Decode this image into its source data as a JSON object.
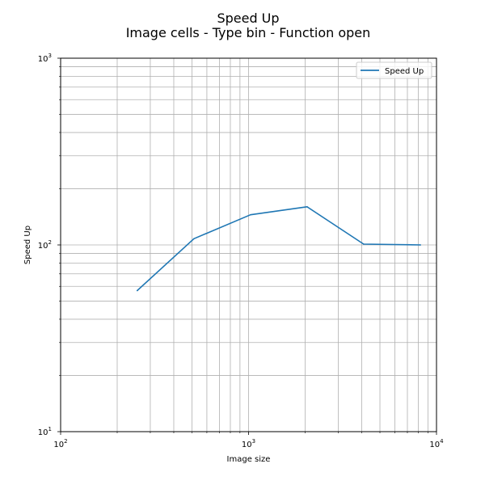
{
  "chart_data": {
    "type": "line",
    "title": "Speed Up",
    "subtitle": "Image cells - Type bin - Function open",
    "xlabel": "Image size",
    "ylabel": "Speed Up",
    "xscale": "log",
    "yscale": "log",
    "xlim": [
      100,
      10000
    ],
    "ylim": [
      10,
      1000
    ],
    "grid": "major and minor",
    "legend_position": "top-right",
    "x_ticks": [
      {
        "value": 100,
        "base": "10",
        "exp": "2"
      },
      {
        "value": 1000,
        "base": "10",
        "exp": "3"
      },
      {
        "value": 10000,
        "base": "10",
        "exp": "4"
      }
    ],
    "y_ticks": [
      {
        "value": 10,
        "base": "10",
        "exp": "1"
      },
      {
        "value": 100,
        "base": "10",
        "exp": "2"
      },
      {
        "value": 1000,
        "base": "10",
        "exp": "3"
      }
    ],
    "series": [
      {
        "name": "Speed Up",
        "color": "#1f77b4",
        "x": [
          256,
          512,
          1024,
          2048,
          4096,
          8192
        ],
        "y": [
          57,
          108,
          145,
          160,
          101,
          100
        ]
      }
    ]
  }
}
